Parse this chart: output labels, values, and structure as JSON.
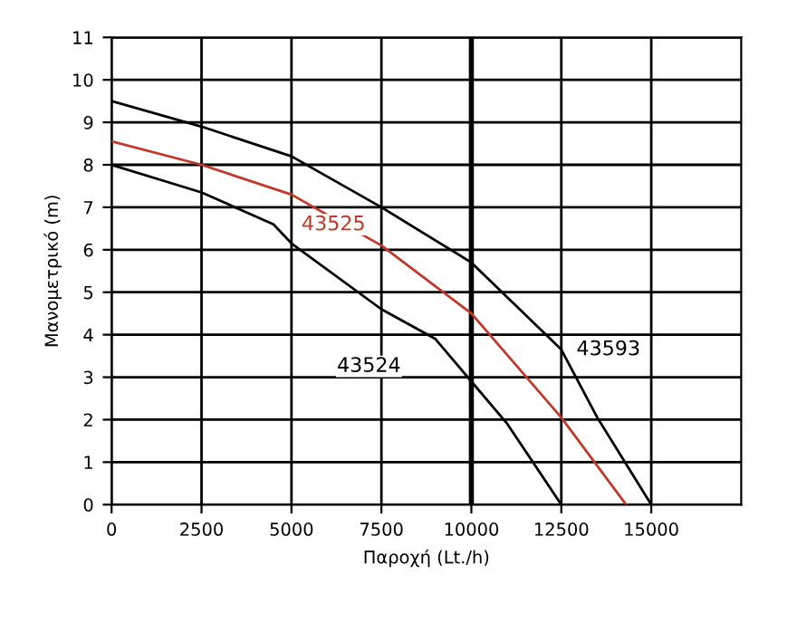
{
  "chart_data": {
    "type": "line",
    "xlabel": "Παροχή (Lt./h)",
    "ylabel": "Μανομετρικό (m)",
    "xlim": [
      0,
      17500
    ],
    "xticks": [
      0,
      2500,
      5000,
      7500,
      10000,
      12500,
      15000
    ],
    "ylim": [
      0,
      11
    ],
    "yticks": [
      0,
      1,
      2,
      3,
      4,
      5,
      6,
      7,
      8,
      9,
      10,
      11
    ],
    "grid": true,
    "marker": "none",
    "line_style": "solid",
    "series": [
      {
        "name": "43593",
        "color": "#000000",
        "x": [
          0,
          2500,
          5000,
          7500,
          10000,
          12500,
          13500,
          15000
        ],
        "values": [
          9.5,
          8.9,
          8.2,
          7.0,
          5.7,
          3.65,
          2.05,
          0
        ]
      },
      {
        "name": "43525",
        "color": "#c0392b",
        "x": [
          0,
          2500,
          5000,
          7500,
          10000,
          12500,
          14300
        ],
        "values": [
          8.55,
          8.0,
          7.3,
          6.1,
          4.5,
          2.05,
          0
        ]
      },
      {
        "name": "43524",
        "color": "#000000",
        "x": [
          0,
          2500,
          4500,
          5000,
          7500,
          9000,
          10000,
          11000,
          12500
        ],
        "values": [
          8.0,
          7.35,
          6.6,
          6.15,
          4.6,
          3.9,
          2.9,
          1.9,
          0
        ]
      }
    ],
    "ref_lines": [
      {
        "axis": "x",
        "value": 10000,
        "color": "#000000"
      }
    ]
  }
}
